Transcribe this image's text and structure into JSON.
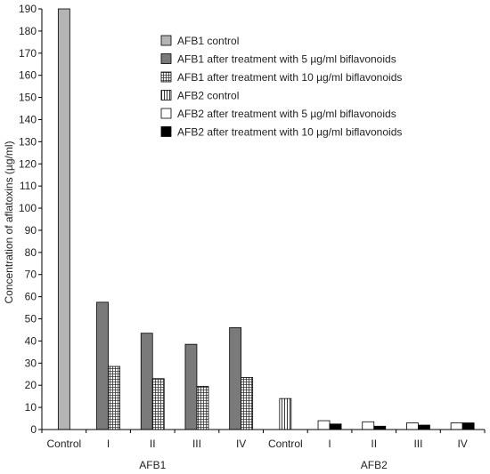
{
  "chart_data": {
    "type": "bar",
    "ylabel": "Concentration of aflatoxins (µg/ml)",
    "ylim": [
      0,
      190
    ],
    "yticks": [
      0,
      10,
      20,
      30,
      40,
      50,
      60,
      70,
      80,
      90,
      100,
      110,
      120,
      130,
      140,
      150,
      160,
      170,
      180,
      190
    ],
    "grid": false,
    "legend_position": "top-right",
    "groups": [
      {
        "label": "AFB1",
        "categories": [
          "Control",
          "I",
          "II",
          "III",
          "IV"
        ],
        "series": [
          {
            "name": "AFB1 control",
            "values": [
              190,
              null,
              null,
              null,
              null
            ]
          },
          {
            "name": "AFB1 after treatment with 5 µg/ml biflavonoids",
            "values": [
              null,
              57.5,
              43.5,
              38.5,
              46
            ]
          },
          {
            "name": "AFB1 after treatment with 10 µg/ml biflavonoids",
            "values": [
              null,
              28.5,
              23,
              19.5,
              23.5
            ]
          }
        ]
      },
      {
        "label": "AFB2",
        "categories": [
          "Control",
          "I",
          "II",
          "III",
          "IV"
        ],
        "series": [
          {
            "name": "AFB2 control",
            "values": [
              14,
              null,
              null,
              null,
              null
            ]
          },
          {
            "name": "AFB2 after treatment with 5 µg/ml biflavonoids",
            "values": [
              null,
              4,
              3.5,
              3,
              3
            ]
          },
          {
            "name": "AFB2 after treatment with 10 µg/ml biflavonoids",
            "values": [
              null,
              2.5,
              1.5,
              2,
              3
            ]
          }
        ]
      }
    ],
    "legend": [
      {
        "label": "AFB1 control",
        "pattern": "light-gray"
      },
      {
        "label": "AFB1 after treatment with 5 µg/ml biflavonoids",
        "pattern": "dark-gray"
      },
      {
        "label": "AFB1 after treatment with 10 µg/ml biflavonoids",
        "pattern": "grid-hatch"
      },
      {
        "label": "AFB2 control",
        "pattern": "vertical-stripes"
      },
      {
        "label": "AFB2 after treatment with 5 µg/ml biflavonoids",
        "pattern": "white"
      },
      {
        "label": "AFB2 after treatment with 10 µg/ml biflavonoids",
        "pattern": "black"
      }
    ],
    "colors": {
      "light_gray": "#b4b4b4",
      "dark_gray": "#7a7a7a",
      "black": "#000000",
      "white": "#ffffff"
    }
  }
}
